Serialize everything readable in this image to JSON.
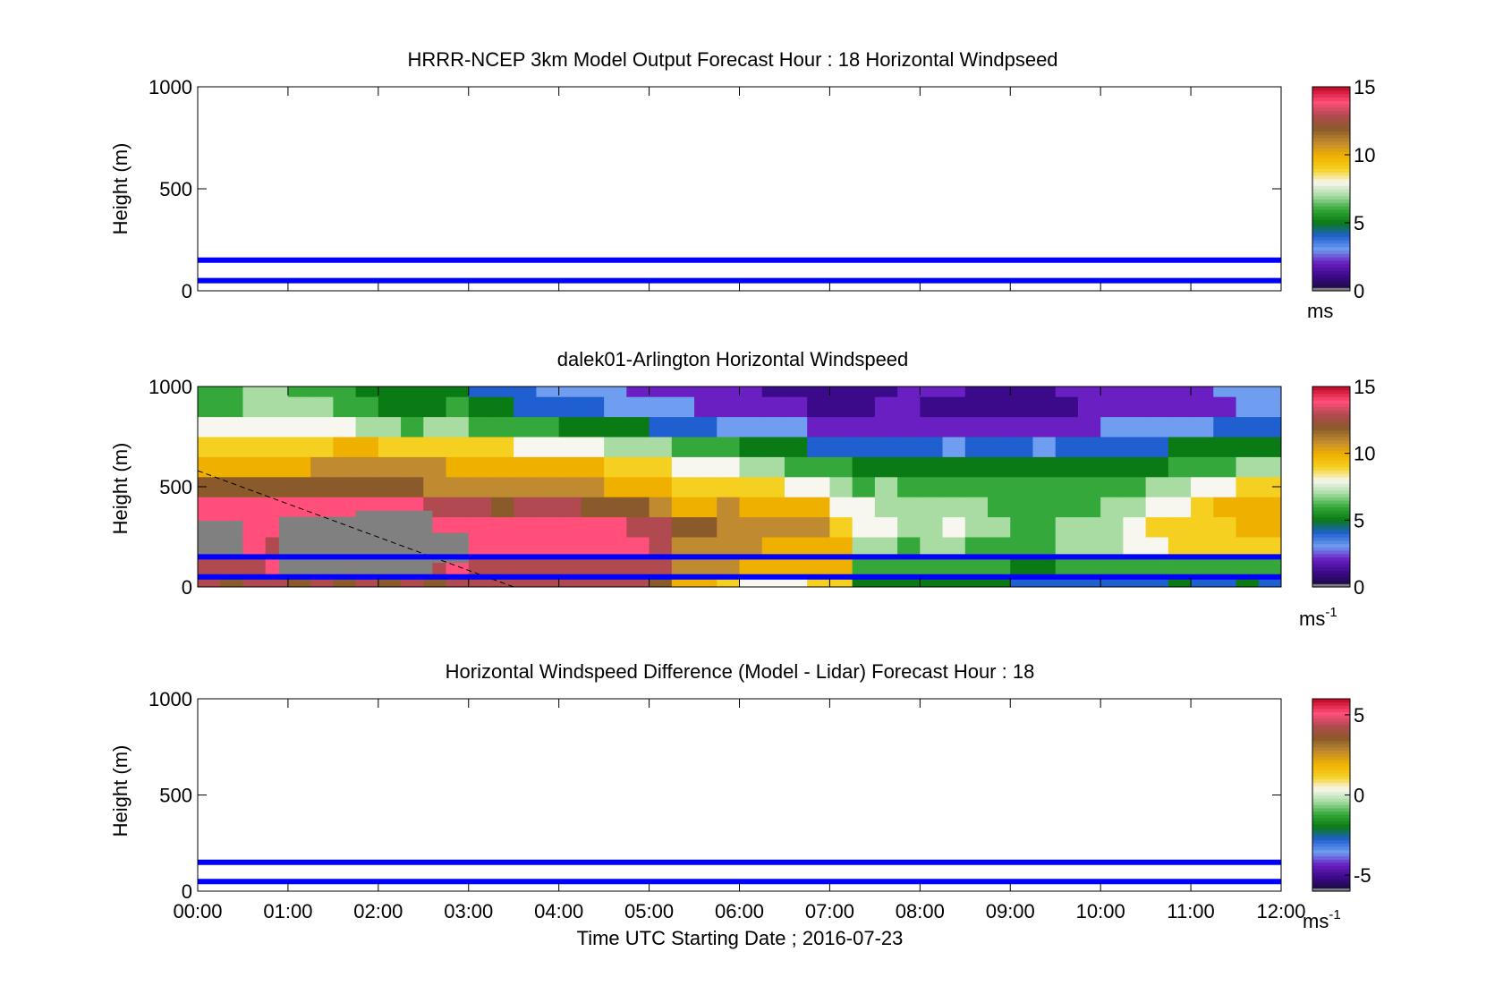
{
  "figure": {
    "xlabel": "Time UTC  Starting Date ; 2016-07-23",
    "x_ticks": [
      "00:00",
      "01:00",
      "02:00",
      "03:00",
      "04:00",
      "05:00",
      "06:00",
      "07:00",
      "08:00",
      "09:00",
      "10:00",
      "11:00",
      "12:00"
    ]
  },
  "colors": {
    "line_blue": "#0000ff",
    "colormap": [
      "#808080",
      "#1a0a3c",
      "#3b0a8a",
      "#6a1fc2",
      "#6f9df0",
      "#1f5fd0",
      "#0a7a14",
      "#34a83a",
      "#a8dca3",
      "#f7f7f0",
      "#f5d020",
      "#f0b000",
      "#c08a30",
      "#8a5a2a",
      "#b04a50",
      "#ff4f7a",
      "#c8102e"
    ]
  },
  "chart_data": [
    {
      "type": "heatmap",
      "title": "HRRR-NCEP 3km Model Output   Forecast Hour : 18 Horizontal Windpseed",
      "ylabel": "Height (m)",
      "ylim": [
        0,
        1000
      ],
      "y_ticks": [
        "0",
        "500",
        "1000"
      ],
      "xlim_hours": [
        0,
        12
      ],
      "has_data": false,
      "reference_lines_m": [
        50,
        150
      ],
      "colorbar": {
        "ticks": [
          "0",
          "5",
          "10",
          "15"
        ],
        "range": [
          0,
          15
        ],
        "unit": "ms",
        "unit_sup": ""
      }
    },
    {
      "type": "heatmap",
      "title": "dalek01-Arlington  Horizontal Windspeed",
      "ylabel": "Height (m)",
      "ylim": [
        0,
        1000
      ],
      "y_ticks": [
        "0",
        "500",
        "1000"
      ],
      "xlim_hours": [
        0,
        12
      ],
      "has_data": true,
      "reference_lines_m": [
        50,
        150
      ],
      "dashed_line": {
        "from": [
          0,
          580
        ],
        "to": [
          3.5,
          0
        ]
      },
      "colorbar": {
        "ticks": [
          "0",
          "5",
          "10",
          "15"
        ],
        "range": [
          0,
          15
        ],
        "unit": "ms",
        "unit_sup": "-1"
      },
      "time_hours": [
        0.0,
        0.25,
        0.5,
        0.75,
        1.0,
        1.25,
        1.5,
        1.75,
        2.0,
        2.25,
        2.5,
        2.75,
        3.0,
        3.25,
        3.5,
        3.75,
        4.0,
        4.25,
        4.5,
        4.75,
        5.0,
        5.25,
        5.5,
        5.75,
        6.0,
        6.25,
        6.5,
        6.75,
        7.0,
        7.25,
        7.5,
        7.75,
        8.0,
        8.25,
        8.5,
        8.75,
        9.0,
        9.25,
        9.5,
        9.75,
        10.0,
        10.25,
        10.5,
        10.75,
        11.0,
        11.25,
        11.5,
        11.75
      ],
      "height_m": [
        0,
        100,
        200,
        300,
        400,
        500,
        600,
        700,
        800,
        900,
        1000
      ],
      "speed_ms": [
        [
          13,
          12,
          13,
          13,
          12,
          13,
          12,
          13,
          12,
          13,
          12,
          13,
          13,
          13,
          13,
          13,
          13,
          13,
          13,
          13,
          12,
          10,
          10,
          9,
          8,
          8,
          8,
          9,
          9,
          5,
          5,
          5,
          5,
          5,
          5,
          5,
          4,
          4,
          4,
          4,
          4,
          4,
          4,
          5,
          4,
          4,
          5,
          4
        ],
        [
          13,
          13,
          13,
          14,
          13,
          13,
          14,
          13,
          14,
          13,
          13,
          14,
          13,
          13,
          13,
          13,
          13,
          13,
          13,
          13,
          13,
          11,
          11,
          11,
          10,
          10,
          10,
          10,
          10,
          6,
          6,
          6,
          6,
          6,
          6,
          6,
          5,
          5,
          6,
          6,
          6,
          6,
          6,
          6,
          6,
          6,
          6,
          6
        ],
        [
          14,
          13,
          14,
          13,
          14,
          14,
          14,
          13,
          14,
          13,
          14,
          14,
          14,
          14,
          14,
          14,
          14,
          14,
          14,
          14,
          13,
          11,
          11,
          11,
          11,
          10,
          10,
          10,
          10,
          7,
          7,
          6,
          7,
          7,
          6,
          6,
          6,
          6,
          7,
          7,
          7,
          8,
          8,
          9,
          9,
          9,
          9,
          9
        ],
        [
          14,
          14,
          14,
          14,
          14,
          14,
          14,
          14,
          14,
          14,
          14,
          14,
          14,
          14,
          14,
          14,
          14,
          14,
          14,
          13,
          13,
          12,
          12,
          11,
          11,
          11,
          11,
          11,
          9,
          8,
          8,
          7,
          7,
          8,
          7,
          7,
          6,
          6,
          7,
          7,
          7,
          8,
          9,
          9,
          9,
          9,
          10,
          10
        ],
        [
          14,
          14,
          14,
          14,
          14,
          14,
          14,
          14,
          14,
          14,
          13,
          13,
          13,
          12,
          13,
          13,
          13,
          12,
          12,
          12,
          11,
          10,
          10,
          11,
          10,
          10,
          10,
          10,
          8,
          8,
          7,
          7,
          7,
          7,
          7,
          6,
          6,
          6,
          6,
          6,
          7,
          7,
          8,
          8,
          9,
          10,
          10,
          10
        ],
        [
          12,
          12,
          12,
          12,
          12,
          12,
          12,
          12,
          12,
          12,
          11,
          11,
          11,
          11,
          11,
          11,
          11,
          11,
          10,
          10,
          10,
          9,
          9,
          9,
          9,
          9,
          8,
          8,
          7,
          6,
          7,
          6,
          6,
          6,
          6,
          6,
          6,
          6,
          6,
          6,
          6,
          6,
          7,
          7,
          8,
          8,
          9,
          9
        ],
        [
          10,
          10,
          10,
          10,
          10,
          11,
          11,
          11,
          11,
          11,
          11,
          10,
          10,
          10,
          10,
          10,
          10,
          10,
          9,
          9,
          9,
          8,
          8,
          8,
          7,
          7,
          6,
          6,
          6,
          5,
          5,
          5,
          5,
          5,
          5,
          5,
          5,
          5,
          5,
          5,
          5,
          5,
          5,
          6,
          6,
          6,
          7,
          7
        ],
        [
          9,
          9,
          9,
          9,
          9,
          9,
          10,
          10,
          9,
          9,
          9,
          9,
          9,
          9,
          8,
          8,
          8,
          8,
          7,
          7,
          7,
          6,
          6,
          6,
          5,
          5,
          5,
          4,
          4,
          4,
          4,
          4,
          4,
          3,
          4,
          4,
          4,
          3,
          4,
          4,
          4,
          4,
          4,
          5,
          5,
          5,
          5,
          5
        ],
        [
          8,
          8,
          8,
          8,
          8,
          8,
          8,
          7,
          7,
          6,
          7,
          7,
          6,
          6,
          6,
          6,
          5,
          5,
          5,
          5,
          4,
          4,
          4,
          3,
          3,
          3,
          3,
          2,
          2,
          2,
          2,
          2,
          2,
          2,
          2,
          2,
          2,
          2,
          2,
          2,
          3,
          3,
          3,
          3,
          3,
          4,
          4,
          4
        ],
        [
          6,
          6,
          7,
          7,
          7,
          7,
          6,
          6,
          5,
          5,
          5,
          6,
          5,
          5,
          4,
          4,
          4,
          4,
          3,
          3,
          3,
          3,
          2,
          2,
          2,
          2,
          2,
          1,
          1,
          1,
          2,
          2,
          1,
          1,
          1,
          1,
          1,
          1,
          1,
          2,
          2,
          2,
          2,
          2,
          2,
          2,
          3,
          3
        ],
        [
          6,
          6,
          7,
          7,
          6,
          6,
          6,
          5,
          5,
          5,
          5,
          5,
          4,
          4,
          4,
          3,
          3,
          3,
          3,
          2,
          2,
          2,
          2,
          2,
          2,
          1,
          1,
          1,
          1,
          1,
          1,
          2,
          2,
          2,
          1,
          1,
          1,
          1,
          2,
          2,
          2,
          2,
          2,
          2,
          2,
          3,
          3,
          3
        ]
      ],
      "missing_cells_note": "gray",
      "missing_regions": [
        {
          "t0": 0.0,
          "t1": 0.5,
          "h0": 150,
          "h1": 330
        },
        {
          "t0": 0.9,
          "t1": 1.75,
          "h0": 60,
          "h1": 350
        },
        {
          "t0": 1.75,
          "t1": 2.6,
          "h0": 60,
          "h1": 380
        },
        {
          "t0": 2.6,
          "t1": 3.0,
          "h0": 120,
          "h1": 270
        }
      ]
    },
    {
      "type": "heatmap",
      "title": "Horizontal Windspeed Difference (Model - Lidar) Forecast Hour : 18",
      "ylabel": "Height (m)",
      "ylim": [
        0,
        1000
      ],
      "y_ticks": [
        "0",
        "500",
        "1000"
      ],
      "xlim_hours": [
        0,
        12
      ],
      "has_data": false,
      "reference_lines_m": [
        50,
        150
      ],
      "colorbar": {
        "ticks": [
          "-5",
          "0",
          "5"
        ],
        "range": [
          -6,
          6
        ],
        "unit": "ms",
        "unit_sup": "-1"
      }
    }
  ]
}
